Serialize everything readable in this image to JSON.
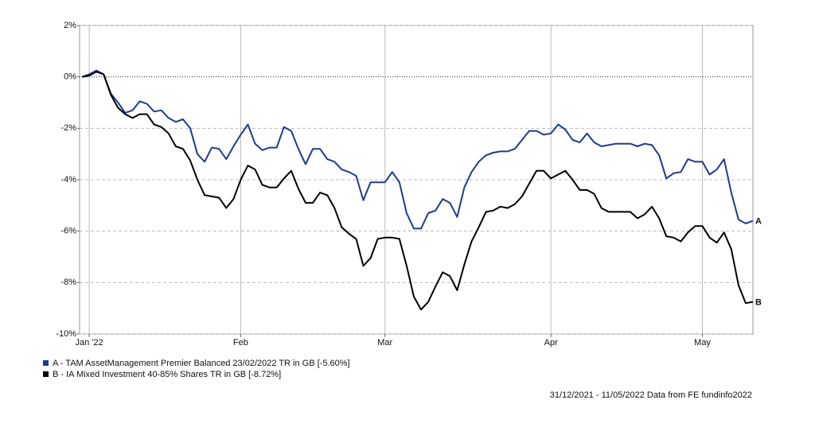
{
  "chart_data": {
    "type": "line",
    "categories": [
      null,
      "Jan '22",
      null,
      null,
      null,
      null,
      null,
      null,
      null,
      null,
      null,
      null,
      null,
      null,
      null,
      null,
      null,
      null,
      null,
      null,
      null,
      null,
      "Feb",
      null,
      null,
      null,
      null,
      null,
      null,
      null,
      null,
      null,
      null,
      null,
      null,
      null,
      null,
      null,
      null,
      null,
      null,
      null,
      "Mar",
      null,
      null,
      null,
      null,
      null,
      null,
      null,
      null,
      null,
      null,
      null,
      null,
      null,
      null,
      null,
      null,
      null,
      null,
      null,
      null,
      null,
      null,
      "Apr",
      null,
      null,
      null,
      null,
      null,
      null,
      null,
      null,
      null,
      null,
      null,
      null,
      null,
      null,
      null,
      null,
      null,
      null,
      null,
      null,
      "May",
      null,
      null,
      null,
      null,
      null,
      null,
      null
    ],
    "series": [
      {
        "name": "A - TAM AssetManagement Premier Balanced 23/02/2022 TR in GB [-5.60%]",
        "end_label": "A",
        "color": "#1f3a8f",
        "values": [
          0,
          0.1,
          0.25,
          0.1,
          -0.65,
          -1,
          -1.4,
          -1.3,
          -0.95,
          -1.05,
          -1.35,
          -1.3,
          -1.6,
          -1.75,
          -1.65,
          -2,
          -3,
          -3.3,
          -2.75,
          -2.8,
          -3.2,
          -2.7,
          -2.25,
          -1.85,
          -2.6,
          -2.85,
          -2.75,
          -2.75,
          -1.95,
          -2.1,
          -2.8,
          -3.4,
          -2.8,
          -2.8,
          -3.2,
          -3.3,
          -3.6,
          -3.7,
          -3.85,
          -4.8,
          -4.1,
          -4.1,
          -4.1,
          -3.7,
          -4.1,
          -5.3,
          -5.9,
          -5.9,
          -5.3,
          -5.2,
          -4.75,
          -4.9,
          -5.45,
          -4.3,
          -3.7,
          -3.3,
          -3.05,
          -2.95,
          -2.9,
          -2.9,
          -2.8,
          -2.45,
          -2.1,
          -2.1,
          -2.25,
          -2.2,
          -1.85,
          -2.05,
          -2.45,
          -2.55,
          -2.2,
          -2.55,
          -2.7,
          -2.65,
          -2.6,
          -2.6,
          -2.6,
          -2.7,
          -2.6,
          -2.65,
          -3.05,
          -3.95,
          -3.75,
          -3.7,
          -3.2,
          -3.3,
          -3.3,
          -3.8,
          -3.6,
          -3.2,
          -4.5,
          -5.55,
          -5.7,
          -5.6
        ]
      },
      {
        "name": "B - IA Mixed Investment 40-85% Shares TR in GB [-8.72%]",
        "end_label": "B",
        "color": "#000000",
        "values": [
          0,
          0.05,
          0.2,
          0.1,
          -0.7,
          -1.2,
          -1.45,
          -1.6,
          -1.45,
          -1.45,
          -1.85,
          -1.95,
          -2.2,
          -2.7,
          -2.8,
          -3.25,
          -4,
          -4.6,
          -4.65,
          -4.7,
          -5.1,
          -4.75,
          -4,
          -3.45,
          -3.6,
          -4.2,
          -4.3,
          -4.3,
          -3.95,
          -3.65,
          -4.35,
          -4.9,
          -4.9,
          -4.5,
          -4.6,
          -5.1,
          -5.85,
          -6.1,
          -6.3,
          -7.35,
          -7.05,
          -6.3,
          -6.25,
          -6.25,
          -6.3,
          -7.35,
          -8.55,
          -9.05,
          -8.75,
          -8.15,
          -7.6,
          -7.75,
          -8.3,
          -7.3,
          -6.4,
          -5.85,
          -5.25,
          -5.2,
          -5.05,
          -5.1,
          -4.95,
          -4.65,
          -4.15,
          -3.65,
          -3.65,
          -3.95,
          -3.8,
          -3.65,
          -4,
          -4.4,
          -4.4,
          -4.55,
          -5.1,
          -5.25,
          -5.25,
          -5.25,
          -5.25,
          -5.5,
          -5.35,
          -5.05,
          -5.5,
          -6.2,
          -6.25,
          -6.4,
          -6.05,
          -5.8,
          -5.8,
          -6.25,
          -6.45,
          -6.05,
          -6.7,
          -8.1,
          -8.8,
          -8.75
        ]
      }
    ],
    "ylim": [
      -10,
      2
    ],
    "yticks": [
      {
        "value": 2,
        "label": "2%"
      },
      {
        "value": 0,
        "label": "0%"
      },
      {
        "value": -2,
        "label": "-2%"
      },
      {
        "value": -4,
        "label": "-4%"
      },
      {
        "value": -6,
        "label": "-6%"
      },
      {
        "value": -8,
        "label": "-8%"
      },
      {
        "value": -10,
        "label": "-10%"
      }
    ],
    "grid": true,
    "footnote": "31/12/2021 - 11/05/2022 Data from FE fundinfo2022"
  }
}
